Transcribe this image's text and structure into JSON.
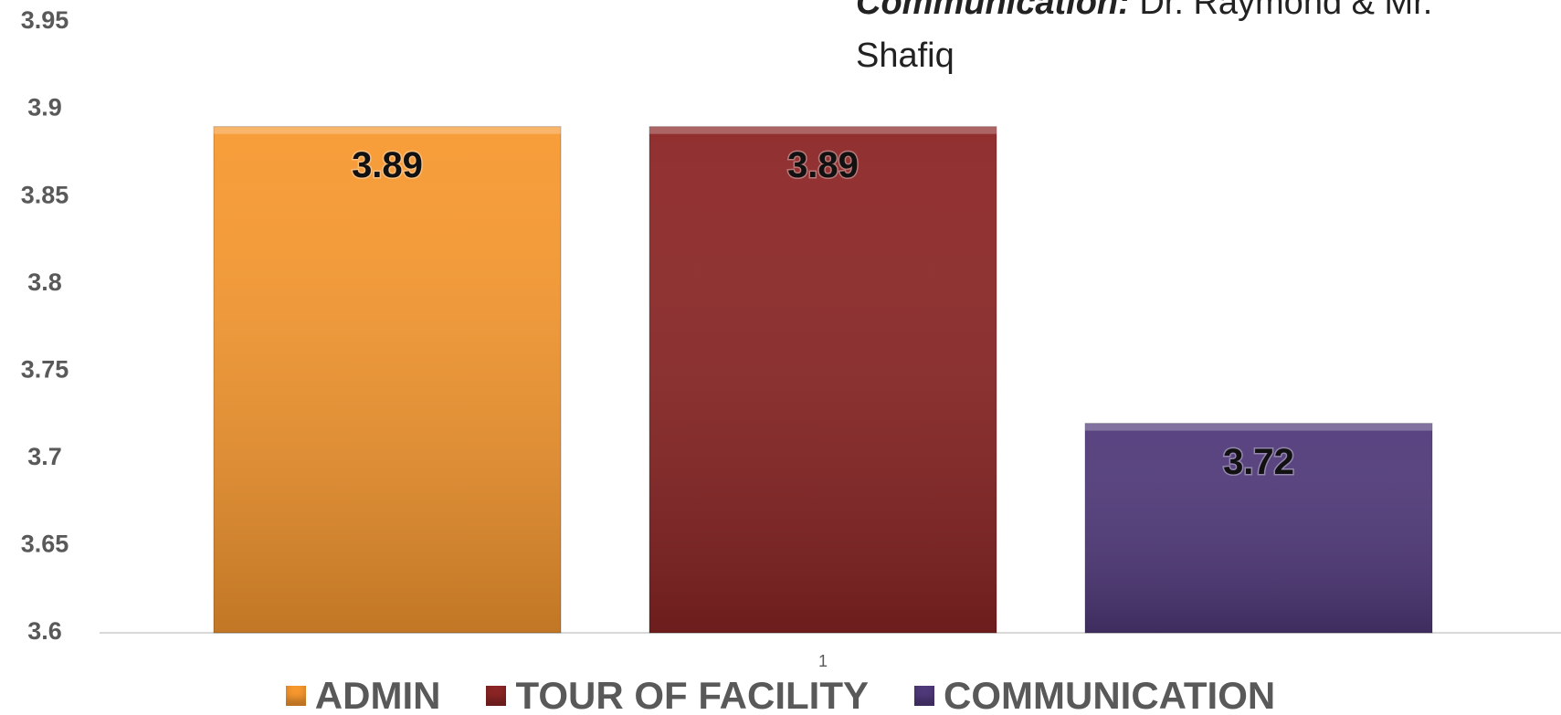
{
  "chart_data": {
    "type": "bar",
    "annotation": {
      "bold": "Communication:",
      "text": " Dr. Raymond & Mr. Shafiq"
    },
    "categories": [
      "1"
    ],
    "series": [
      {
        "name": "ADMIN",
        "color": "#f7982f",
        "values": [
          3.89
        ]
      },
      {
        "name": "TOUR OF FACILITY",
        "color": "#8c2525",
        "values": [
          3.89
        ]
      },
      {
        "name": "COMMUNICATION",
        "color": "#50397a",
        "values": [
          3.72
        ]
      }
    ],
    "ylim": [
      3.6,
      3.95
    ],
    "yticks": [
      3.6,
      3.65,
      3.7,
      3.75,
      3.8,
      3.85,
      3.9,
      3.95
    ],
    "grid": false
  }
}
